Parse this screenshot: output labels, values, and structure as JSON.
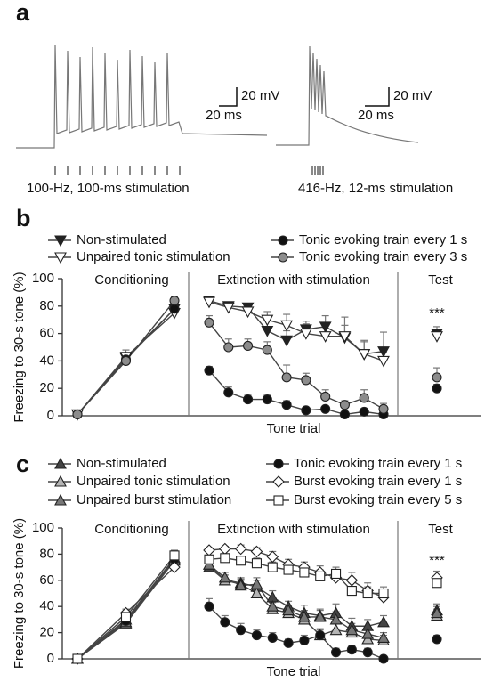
{
  "panel_a": {
    "label": "a",
    "traces": [
      {
        "scale_voltage": "20 mV",
        "scale_time": "20 ms",
        "caption": "100-Hz, 100-ms stimulation"
      },
      {
        "scale_voltage": "20 mV",
        "scale_time": "20 ms",
        "caption": "416-Hz, 12-ms stimulation"
      }
    ]
  },
  "chart_data": [
    {
      "type": "line",
      "panel": "b",
      "ylabel": "Freezing to 30-s tone (%)",
      "xlabel": "Tone trial",
      "sections": [
        "Conditioning",
        "Extinction with stimulation",
        "Test"
      ],
      "ylim": [
        0,
        100
      ],
      "yticks": [
        0,
        20,
        40,
        60,
        80,
        100
      ],
      "annotation": "***",
      "series": [
        {
          "name": "Non-stimulated",
          "color": "#222222",
          "marker": "triangle-down",
          "values": [
            [
              1,
              42,
              78
            ],
            [
              84,
              80,
              79,
              62,
              55,
              63,
              65,
              57,
              45,
              47
            ],
            [
              60
            ]
          ],
          "errors": [
            [
              1,
              4,
              4
            ],
            [
              3,
              3,
              3,
              8,
              7,
              6,
              8,
              9,
              10,
              14
            ],
            [
              5
            ]
          ]
        },
        {
          "name": "Unpaired tonic stimulation",
          "color": "#ffffff",
          "marker": "triangle-down",
          "values": [
            [
              1,
              43,
              75
            ],
            [
              83,
              79,
              76,
              70,
              66,
              60,
              58,
              58,
              45,
              40
            ],
            [
              58
            ]
          ],
          "errors": [
            [
              1,
              5,
              5
            ],
            [
              3,
              4,
              4,
              6,
              8,
              7,
              10,
              14,
              9,
              6
            ],
            [
              5
            ]
          ]
        },
        {
          "name": "Tonic evoking train every 1 s",
          "color": "#111111",
          "marker": "circle",
          "values": [
            [
              1,
              41,
              78
            ],
            [
              33,
              17,
              12,
              12,
              8,
              4,
              5,
              1,
              3,
              1
            ],
            [
              20
            ]
          ],
          "errors": [
            [
              1,
              3,
              5
            ],
            [
              3,
              4,
              3,
              3,
              3,
              2,
              2,
              1,
              2,
              1
            ],
            [
              3
            ]
          ]
        },
        {
          "name": "Tonic evoking train every 3 s",
          "color": "#8c8c8c",
          "marker": "circle",
          "values": [
            [
              1,
              40,
              84
            ],
            [
              68,
              50,
              51,
              48,
              28,
              26,
              14,
              8,
              13,
              5
            ],
            [
              28
            ]
          ],
          "errors": [
            [
              1,
              4,
              3
            ],
            [
              5,
              6,
              5,
              6,
              9,
              5,
              5,
              3,
              6,
              4
            ],
            [
              7
            ]
          ]
        }
      ]
    },
    {
      "type": "line",
      "panel": "c",
      "ylabel": "Freezing to 30-s tone (%)",
      "xlabel": "Tone trial",
      "sections": [
        "Conditioning",
        "Extinction with stimulation",
        "Test"
      ],
      "ylim": [
        0,
        100
      ],
      "yticks": [
        0,
        20,
        40,
        60,
        80,
        100
      ],
      "annotation": "***",
      "series": [
        {
          "name": "Non-stimulated",
          "color": "#444444",
          "marker": "triangle-up",
          "values": [
            [
              0,
              30,
              77
            ],
            [
              70,
              60,
              58,
              55,
              47,
              40,
              35,
              33,
              35,
              25,
              25,
              28
            ],
            [
              37
            ]
          ],
          "errors": [
            [
              1,
              3,
              4
            ],
            [
              3,
              4,
              4,
              5,
              5,
              4,
              6,
              5,
              7,
              6,
              5,
              5
            ],
            [
              5
            ]
          ]
        },
        {
          "name": "Unpaired tonic stimulation",
          "color": "#b5b5b5",
          "marker": "triangle-up",
          "values": [
            [
              0,
              27,
              75
            ],
            [
              72,
              60,
              57,
              50,
              38,
              35,
              30,
              18,
              22,
              20,
              15,
              14
            ],
            [
              33
            ]
          ],
          "errors": [
            [
              1,
              3,
              4
            ],
            [
              3,
              4,
              4,
              5,
              5,
              4,
              5,
              4,
              6,
              5,
              4,
              4
            ],
            [
              5
            ]
          ]
        },
        {
          "name": "Unpaired burst stimulation",
          "color": "#777777",
          "marker": "triangle-up",
          "values": [
            [
              0,
              28,
              76
            ],
            [
              72,
              62,
              56,
              57,
              40,
              37,
              32,
              32,
              30,
              22,
              19,
              16
            ],
            [
              35
            ]
          ],
          "errors": [
            [
              1,
              3,
              4
            ],
            [
              3,
              4,
              4,
              5,
              5,
              4,
              5,
              5,
              6,
              5,
              4,
              4
            ],
            [
              5
            ]
          ]
        },
        {
          "name": "Tonic evoking train every 1 s",
          "color": "#111111",
          "marker": "circle",
          "values": [
            [
              0,
              29,
              76
            ],
            [
              40,
              28,
              22,
              18,
              16,
              12,
              14,
              18,
              5,
              7,
              5,
              0
            ],
            [
              15
            ]
          ],
          "errors": [
            [
              1,
              3,
              4
            ],
            [
              6,
              5,
              5,
              4,
              4,
              3,
              4,
              5,
              3,
              3,
              3,
              1
            ],
            [
              3
            ]
          ]
        },
        {
          "name": "Burst evoking train every 1 s",
          "color": "#ffffff",
          "marker": "diamond",
          "values": [
            [
              0,
              35,
              70
            ],
            [
              83,
              84,
              84,
              82,
              78,
              72,
              70,
              66,
              62,
              60,
              52,
              47
            ],
            [
              62
            ]
          ],
          "errors": [
            [
              1,
              3,
              4
            ],
            [
              2,
              2,
              3,
              3,
              4,
              4,
              4,
              5,
              5,
              6,
              6,
              6
            ],
            [
              5
            ]
          ]
        },
        {
          "name": "Burst evoking train every 5 s",
          "color": "#ffffff",
          "marker": "square",
          "values": [
            [
              0,
              32,
              79
            ],
            [
              76,
              77,
              75,
              73,
              70,
              68,
              66,
              63,
              65,
              52,
              50,
              50
            ],
            [
              58
            ]
          ],
          "errors": [
            [
              1,
              3,
              4
            ],
            [
              3,
              3,
              3,
              4,
              4,
              4,
              4,
              5,
              5,
              6,
              5,
              5
            ],
            [
              5
            ]
          ]
        }
      ]
    }
  ]
}
